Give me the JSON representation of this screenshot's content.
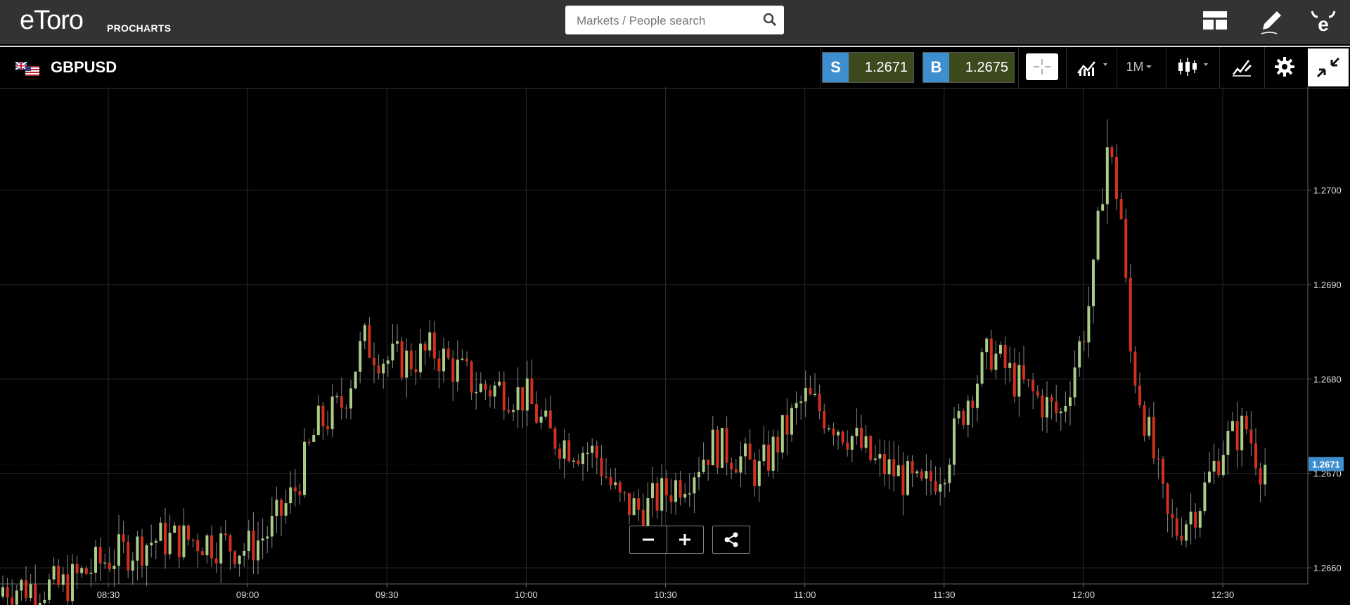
{
  "header": {
    "logo_text": "eToro",
    "logo_sub": "PROCHARTS",
    "search_placeholder": "Markets / People search",
    "icons": [
      "search-icon",
      "layout-icon",
      "pencil-icon",
      "etoro-bull-icon"
    ]
  },
  "toolbar": {
    "symbol": "GBPUSD",
    "sell_tag": "S",
    "sell_price": "1.2671",
    "buy_tag": "B",
    "buy_price": "1.2675",
    "timeframe": "1M",
    "icons": [
      "uk-us-flags-icon",
      "crosshair-icon",
      "indicators-icon",
      "candlestick-type-icon",
      "drawing-tools-icon",
      "gear-icon",
      "collapse-icon"
    ]
  },
  "controls": {
    "zoom_out_icon": "minus-icon",
    "zoom_in_icon": "plus-icon",
    "share_icon": "share-icon"
  },
  "colors": {
    "up": "#a9cc86",
    "down": "#d0301c",
    "grid": "#2a2a2a",
    "price_marker": "#3e8fcf",
    "sell_bg": "#3e8fcf",
    "price_bg": "#3c4a1e"
  },
  "chart_data": {
    "type": "candlestick",
    "title": "",
    "xlabel": "",
    "ylabel": "",
    "x_ticks": [
      "08:30",
      "09:00",
      "09:30",
      "10:00",
      "10:30",
      "11:00",
      "11:30",
      "12:00",
      "12:30"
    ],
    "y_ticks": [
      "1.2660",
      "1.2670",
      "1.2680",
      "1.2690",
      "1.2700"
    ],
    "ylim": [
      1.26583,
      1.27109
    ],
    "last_price_label": "1.2671",
    "last_price": 1.2671,
    "grid": true,
    "series_close_approx": [
      [
        "08:10",
        1.2658
      ],
      [
        "08:20",
        1.2658
      ],
      [
        "08:30",
        1.2661
      ],
      [
        "08:40",
        1.2663
      ],
      [
        "08:50",
        1.2663
      ],
      [
        "09:00",
        1.2662
      ],
      [
        "09:05",
        1.2664
      ],
      [
        "09:10",
        1.2668
      ],
      [
        "09:15",
        1.2675
      ],
      [
        "09:20",
        1.2677
      ],
      [
        "09:25",
        1.2684
      ],
      [
        "09:30",
        1.2682
      ],
      [
        "09:35",
        1.2682
      ],
      [
        "09:40",
        1.2683
      ],
      [
        "09:45",
        1.2681
      ],
      [
        "09:50",
        1.2679
      ],
      [
        "09:55",
        1.2679
      ],
      [
        "10:00",
        1.2678
      ],
      [
        "10:05",
        1.2674
      ],
      [
        "10:10",
        1.2673
      ],
      [
        "10:15",
        1.2672
      ],
      [
        "10:20",
        1.2667
      ],
      [
        "10:25",
        1.2666
      ],
      [
        "10:30",
        1.2668
      ],
      [
        "10:35",
        1.267
      ],
      [
        "10:40",
        1.2673
      ],
      [
        "10:45",
        1.2672
      ],
      [
        "10:50",
        1.267
      ],
      [
        "10:55",
        1.2674
      ],
      [
        "11:00",
        1.2678
      ],
      [
        "11:05",
        1.2676
      ],
      [
        "11:10",
        1.2674
      ],
      [
        "11:15",
        1.2671
      ],
      [
        "11:20",
        1.267
      ],
      [
        "11:25",
        1.2668
      ],
      [
        "11:30",
        1.2671
      ],
      [
        "11:35",
        1.2678
      ],
      [
        "11:40",
        1.2683
      ],
      [
        "11:45",
        1.268
      ],
      [
        "11:50",
        1.2678
      ],
      [
        "11:55",
        1.2676
      ],
      [
        "12:00",
        1.2685
      ],
      [
        "12:02",
        1.269
      ],
      [
        "12:05",
        1.2705
      ],
      [
        "12:08",
        1.2698
      ],
      [
        "12:10",
        1.2683
      ],
      [
        "12:15",
        1.2672
      ],
      [
        "12:18",
        1.2665
      ],
      [
        "12:20",
        1.2664
      ],
      [
        "12:25",
        1.2667
      ],
      [
        "12:30",
        1.2673
      ],
      [
        "12:35",
        1.2675
      ],
      [
        "12:38",
        1.2671
      ]
    ]
  }
}
